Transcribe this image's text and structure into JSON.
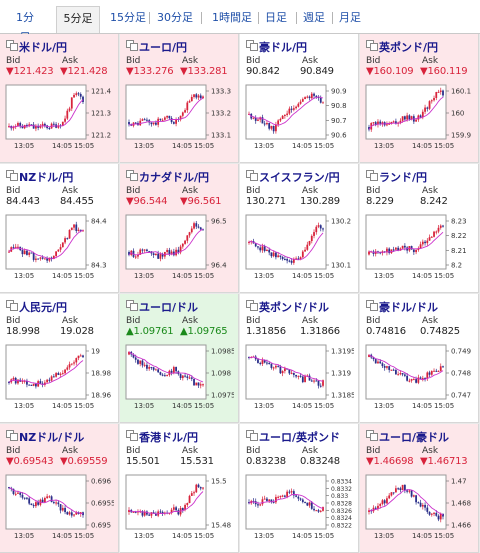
{
  "tabs": [
    "1分足",
    "5分足",
    "15分足",
    "30分足",
    "1時間足",
    "日足",
    "週足",
    "月足"
  ],
  "active_tab": 1,
  "colors": {
    "down_bg": "#fde7ea",
    "up_bg": "#e3f6e3",
    "flat_bg": "#ffffff",
    "rising_candle": "#d8233b",
    "falling_candle": "#2a2f8a",
    "ma_line": "#cc33cc",
    "link": "#1f4fa8"
  },
  "labels": {
    "bid": "Bid",
    "ask": "Ask"
  },
  "x_ticks": [
    "13:05",
    "14:05",
    "15:05"
  ],
  "pairs": [
    {
      "name": "米ドル/円",
      "flag": "us-jp-flag-icon",
      "trend": "down",
      "bid": "▼121.423",
      "ask": "▼121.428",
      "y_ticks": [
        "121.4",
        "121.3",
        "121.2"
      ]
    },
    {
      "name": "ユーロ/円",
      "flag": "eu-jp-flag-icon",
      "trend": "down",
      "bid": "▼133.276",
      "ask": "▼133.281",
      "y_ticks": [
        "133.3",
        "133.2",
        "133.1"
      ]
    },
    {
      "name": "豪ドル/円",
      "flag": "au-jp-flag-icon",
      "trend": "flat",
      "bid": "90.842",
      "ask": "90.849",
      "y_ticks": [
        "90.9",
        "90.8",
        "90.7",
        "90.6"
      ]
    },
    {
      "name": "英ポンド/円",
      "flag": "gb-jp-flag-icon",
      "trend": "down",
      "bid": "▼160.109",
      "ask": "▼160.119",
      "y_ticks": [
        "160.1",
        "160",
        "159.9"
      ]
    },
    {
      "name": "NZドル/円",
      "flag": "nz-jp-flag-icon",
      "trend": "flat",
      "bid": "84.443",
      "ask": "84.455",
      "y_ticks": [
        "84.4",
        "84.3"
      ]
    },
    {
      "name": "カナダドル/円",
      "flag": "ca-jp-flag-icon",
      "trend": "down",
      "bid": "▼96.544",
      "ask": "▼96.561",
      "y_ticks": [
        "96.5",
        "96.4"
      ]
    },
    {
      "name": "スイスフラン/円",
      "flag": "ch-jp-flag-icon",
      "trend": "flat",
      "bid": "130.271",
      "ask": "130.289",
      "y_ticks": [
        "130.2",
        "130.1"
      ]
    },
    {
      "name": "ランド/円",
      "flag": "za-jp-flag-icon",
      "trend": "flat",
      "bid": "8.229",
      "ask": "8.242",
      "y_ticks": [
        "8.23",
        "8.22",
        "8.21",
        "8.2"
      ]
    },
    {
      "name": "人民元/円",
      "flag": "cn-jp-flag-icon",
      "trend": "flat",
      "bid": "18.998",
      "ask": "19.028",
      "y_ticks": [
        "19",
        "18.98",
        "18.96"
      ]
    },
    {
      "name": "ユーロ/ドル",
      "flag": "eu-us-flag-icon",
      "trend": "up",
      "bid": "▲1.09761",
      "ask": "▲1.09765",
      "y_ticks": [
        "1.0985",
        "1.098",
        "1.0975"
      ]
    },
    {
      "name": "英ポンド/ドル",
      "flag": "gb-us-flag-icon",
      "trend": "flat",
      "bid": "1.31856",
      "ask": "1.31866",
      "y_ticks": [
        "1.3195",
        "1.319",
        "1.3185"
      ]
    },
    {
      "name": "豪ドル/ドル",
      "flag": "au-us-flag-icon",
      "trend": "flat",
      "bid": "0.74816",
      "ask": "0.74825",
      "y_ticks": [
        "0.749",
        "0.748",
        "0.747"
      ]
    },
    {
      "name": "NZドル/ドル",
      "flag": "nz-us-flag-icon",
      "trend": "down",
      "bid": "▼0.69543",
      "ask": "▼0.69559",
      "y_ticks": [
        "0.696",
        "0.6955",
        "0.695"
      ]
    },
    {
      "name": "香港ドル/円",
      "flag": "hk-jp-flag-icon",
      "trend": "flat",
      "bid": "15.501",
      "ask": "15.531",
      "y_ticks": [
        "15.5",
        "15.48"
      ]
    },
    {
      "name": "ユーロ/英ポンド",
      "flag": "eu-gb-flag-icon",
      "trend": "flat",
      "bid": "0.83238",
      "ask": "0.83248",
      "y_ticks": [
        "0.8334",
        "0.8332",
        "0.833",
        "0.8328",
        "0.8326",
        "0.8324",
        "0.8322"
      ]
    },
    {
      "name": "ユーロ/豪ドル",
      "flag": "eu-au-flag-icon",
      "trend": "down",
      "bid": "▼1.46698",
      "ask": "▼1.46713",
      "y_ticks": [
        "1.47",
        "1.468",
        "1.466"
      ]
    }
  ]
}
